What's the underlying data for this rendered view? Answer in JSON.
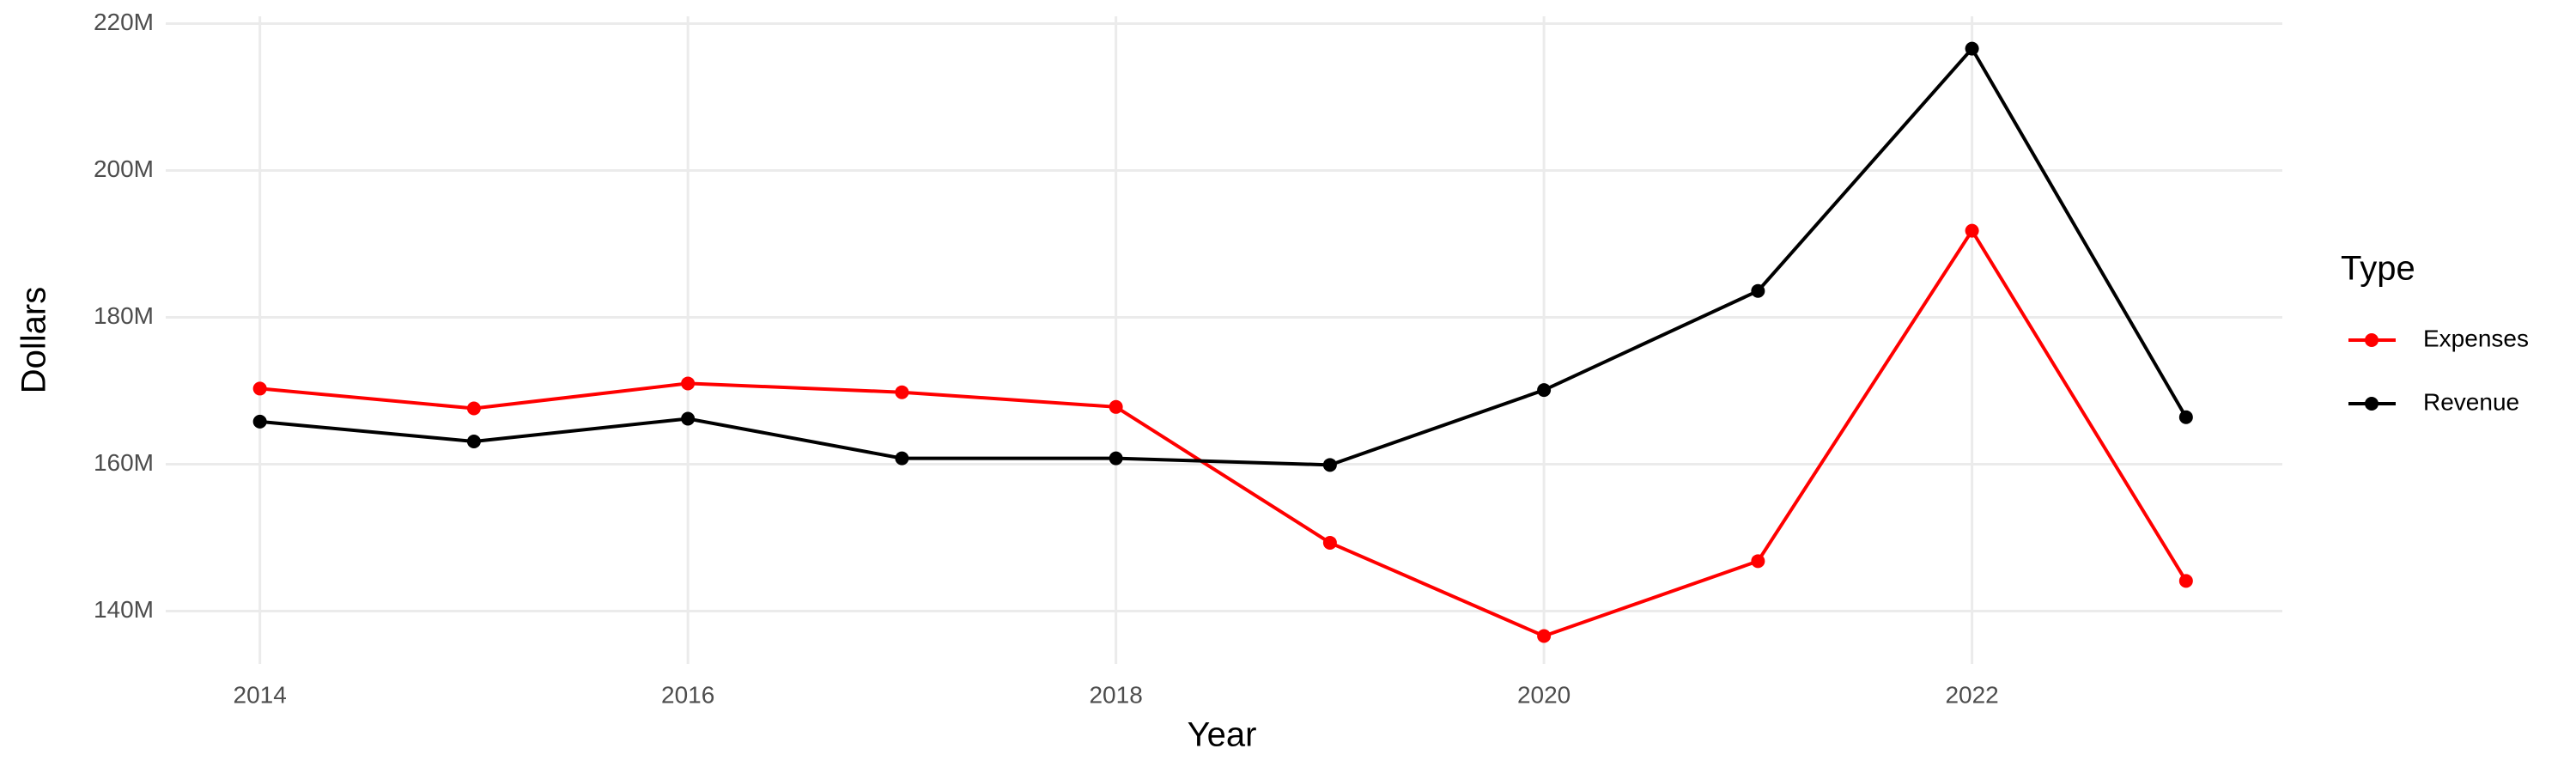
{
  "chart_data": {
    "type": "line",
    "x_label": "Year",
    "y_label": "Dollars",
    "legend_title": "Type",
    "x": [
      2014,
      2015,
      2016,
      2017,
      2018,
      2019,
      2020,
      2021,
      2022,
      2023
    ],
    "series": [
      {
        "name": "Expenses",
        "color": "#ff0000",
        "values": [
          170300000,
          167600000,
          171000000,
          169800000,
          167800000,
          149300000,
          136600000,
          146800000,
          191800000,
          144100000
        ]
      },
      {
        "name": "Revenue",
        "color": "#000000",
        "values": [
          165800000,
          163100000,
          166200000,
          160800000,
          160800000,
          159900000,
          170100000,
          183600000,
          216600000,
          166400000
        ]
      }
    ],
    "xlim": [
      2013.56,
      2023.45
    ],
    "xticks": [
      2014,
      2016,
      2018,
      2020,
      2022
    ],
    "ylim": [
      132800000,
      221000000
    ],
    "yticks": [
      {
        "value": 140000000,
        "label": "140M"
      },
      {
        "value": 160000000,
        "label": "160M"
      },
      {
        "value": 180000000,
        "label": "180M"
      },
      {
        "value": 200000000,
        "label": "200M"
      },
      {
        "value": 220000000,
        "label": "220M"
      }
    ],
    "grid": true,
    "legend_position": "right"
  }
}
